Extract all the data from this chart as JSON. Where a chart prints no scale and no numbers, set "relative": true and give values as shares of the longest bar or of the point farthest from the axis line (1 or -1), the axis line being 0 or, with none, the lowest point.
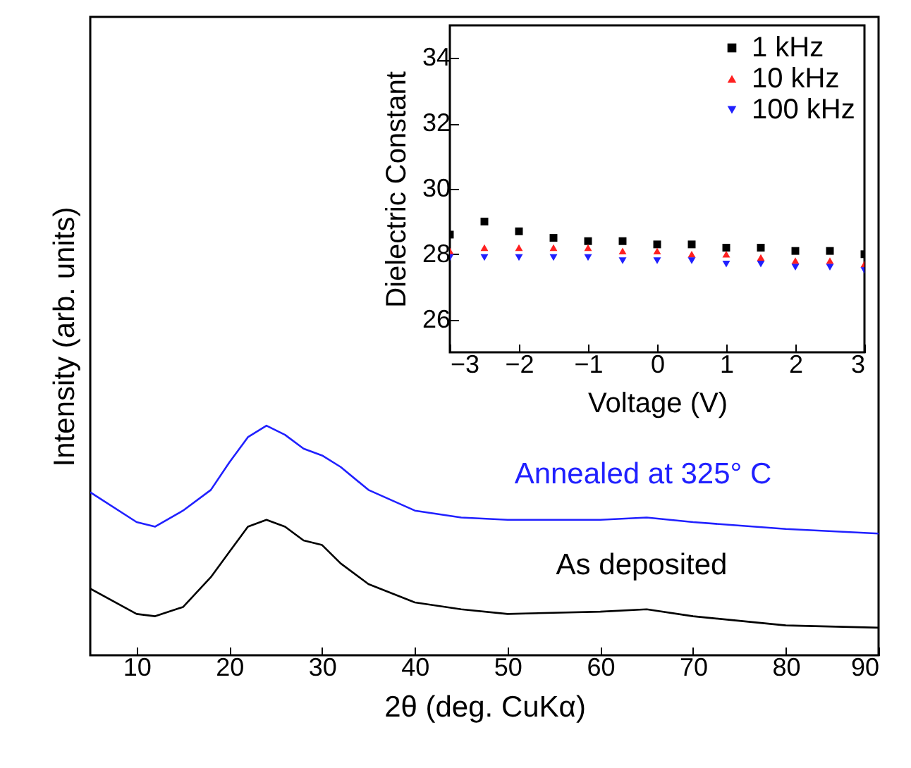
{
  "chart_data": [
    {
      "type": "line",
      "xlabel": "2θ (deg. CuKα)",
      "ylabel": "Intensity (arb. units)",
      "relative": true,
      "xlim": [
        5,
        90
      ],
      "xticks": [
        10,
        20,
        30,
        40,
        50,
        60,
        70,
        80,
        90
      ],
      "grid": false,
      "x": [
        5,
        10,
        12,
        15,
        18,
        20,
        22,
        24,
        26,
        28,
        30,
        32,
        35,
        40,
        45,
        50,
        60,
        65,
        70,
        80,
        90
      ],
      "series": [
        {
          "name": "Annealed at 325° C",
          "color": "#2020ff",
          "values": [
            0.71,
            0.58,
            0.56,
            0.63,
            0.72,
            0.84,
            0.95,
            1,
            0.96,
            0.9,
            0.87,
            0.82,
            0.72,
            0.63,
            0.6,
            0.59,
            0.59,
            0.6,
            0.58,
            0.55,
            0.53
          ]
        },
        {
          "name": "As deposited",
          "color": "#000000",
          "values": [
            0.29,
            0.18,
            0.17,
            0.21,
            0.34,
            0.45,
            0.56,
            0.59,
            0.56,
            0.5,
            0.48,
            0.4,
            0.31,
            0.23,
            0.2,
            0.18,
            0.19,
            0.2,
            0.17,
            0.13,
            0.12
          ]
        }
      ]
    },
    {
      "type": "scatter",
      "xlabel": "Voltage (V)",
      "ylabel": "Dielectric Constant",
      "xlim": [
        -3,
        3
      ],
      "xticks": [
        -3,
        -2,
        -1,
        0,
        1,
        2,
        3
      ],
      "ylim": [
        25,
        35
      ],
      "yticks": [
        26,
        28,
        30,
        32,
        34
      ],
      "grid": false,
      "legend": "top right",
      "x": [
        -3,
        -2.5,
        -2,
        -1.5,
        -1,
        -0.5,
        0,
        0.5,
        1,
        1.5,
        2,
        2.5,
        3
      ],
      "series": [
        {
          "name": "1 kHz",
          "color": "#000000",
          "marker": "square",
          "values": [
            28.6,
            29.0,
            28.7,
            28.5,
            28.4,
            28.4,
            28.3,
            28.3,
            28.2,
            28.2,
            28.1,
            28.1,
            28.0
          ]
        },
        {
          "name": "10 kHz",
          "color": "#ff2020",
          "marker": "triangle",
          "values": [
            28.1,
            28.2,
            28.2,
            28.2,
            28.2,
            28.1,
            28.1,
            28.0,
            28.0,
            27.9,
            27.8,
            27.8,
            27.7
          ]
        },
        {
          "name": "100 kHz",
          "color": "#2020ff",
          "marker": "triangle-down",
          "values": [
            27.9,
            27.9,
            27.9,
            27.9,
            27.9,
            27.8,
            27.8,
            27.8,
            27.7,
            27.7,
            27.6,
            27.6,
            27.5
          ]
        }
      ]
    }
  ]
}
